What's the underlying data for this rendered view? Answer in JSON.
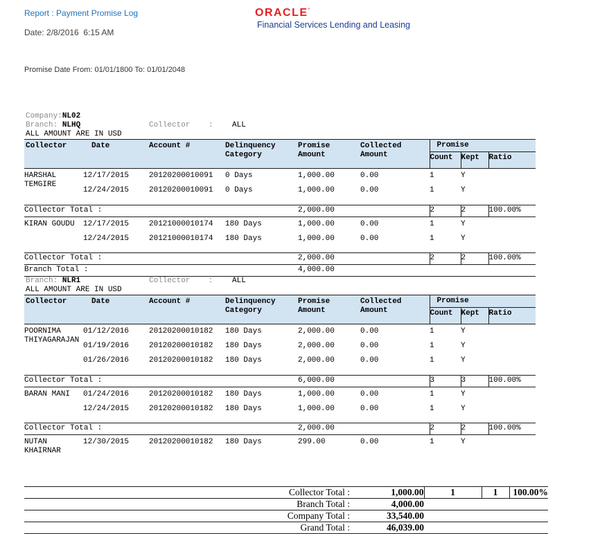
{
  "page": {
    "report_label": "Report : Payment Promise Log",
    "oracle_wordmark": "ORACLE",
    "oracle_mark": "’",
    "tagline": "Financial Services Lending and Leasing",
    "date_line": "Date: 2/8/2016  6:15 AM",
    "promise_range": "Promise Date From: 01/01/1800 To: 01/01/2048"
  },
  "labels": {
    "company": "Company:",
    "branch": "Branch: ",
    "collector": "Collector    :",
    "amount_note": "ALL AMOUNT ARE IN USD",
    "collector_total": "Collector Total :",
    "branch_total": "Branch Total :",
    "company_total": "Company Total :",
    "grand_total": "Grand Total :"
  },
  "company_value": "NL02",
  "columns": {
    "collector": "Collector",
    "date": "Date",
    "account": "Account #",
    "delinquency": [
      "Delinquency",
      "Category"
    ],
    "promise_amount": [
      "Promise",
      "Amount"
    ],
    "collected_amount": [
      "Collected",
      "Amount"
    ],
    "promise_group": "Promise",
    "count": "Count",
    "kept": "Kept",
    "ratio": "Ratio"
  },
  "colors": {
    "header_bg": "#d2e3f2",
    "title_blue": "#1e73bb",
    "tagline_navy": "#1c3c8f",
    "oracle_red": "#e31f21",
    "label_gray": "#8a8a8a"
  },
  "sections": [
    {
      "branch": "NLHQ",
      "collector_filter": "ALL",
      "groups": [
        {
          "collector": "HARSHAL TEMGIRE",
          "rows": [
            {
              "date": "12/17/2015",
              "account": "20120200010091",
              "delinquency": "0 Days",
              "promise": "1,000.00",
              "collected": "0.00",
              "count": "1",
              "kept": "Y"
            },
            {
              "date": "12/24/2015",
              "account": "20120200010091",
              "delinquency": "0 Days",
              "promise": "1,000.00",
              "collected": "0.00",
              "count": "1",
              "kept": "Y"
            }
          ],
          "total": {
            "promise": "2,000.00",
            "count": "2",
            "kept": "2",
            "ratio": "100.00%"
          }
        },
        {
          "collector": "KIRAN GOUDU",
          "rows": [
            {
              "date": "12/17/2015",
              "account": "20121000010174",
              "delinquency": "180 Days",
              "promise": "1,000.00",
              "collected": "0.00",
              "count": "1",
              "kept": "Y"
            },
            {
              "date": "12/24/2015",
              "account": "20121000010174",
              "delinquency": "180 Days",
              "promise": "1,000.00",
              "collected": "0.00",
              "count": "1",
              "kept": "Y"
            }
          ],
          "total": {
            "promise": "2,000.00",
            "count": "2",
            "kept": "2",
            "ratio": "100.00%"
          }
        }
      ],
      "branch_total": "4,000.00"
    },
    {
      "branch": "NLR1",
      "collector_filter": "ALL",
      "groups": [
        {
          "collector": "POORNIMA THIYAGARAJAN",
          "rows": [
            {
              "date": "01/12/2016",
              "account": "20120200010182",
              "delinquency": "180 Days",
              "promise": "2,000.00",
              "collected": "0.00",
              "count": "1",
              "kept": "Y"
            },
            {
              "date": "01/19/2016",
              "account": "20120200010182",
              "delinquency": "180 Days",
              "promise": "2,000.00",
              "collected": "0.00",
              "count": "1",
              "kept": "Y"
            },
            {
              "date": "01/26/2016",
              "account": "20120200010182",
              "delinquency": "180 Days",
              "promise": "2,000.00",
              "collected": "0.00",
              "count": "1",
              "kept": "Y"
            }
          ],
          "total": {
            "promise": "6,000.00",
            "count": "3",
            "kept": "3",
            "ratio": "100.00%"
          }
        },
        {
          "collector": "BARAN MANI",
          "rows": [
            {
              "date": "01/24/2016",
              "account": "20120200010182",
              "delinquency": "180 Days",
              "promise": "1,000.00",
              "collected": "0.00",
              "count": "1",
              "kept": "Y"
            },
            {
              "date": "12/24/2015",
              "account": "20120200010182",
              "delinquency": "180 Days",
              "promise": "1,000.00",
              "collected": "0.00",
              "count": "1",
              "kept": "Y"
            }
          ],
          "total": {
            "promise": "2,000.00",
            "count": "2",
            "kept": "2",
            "ratio": "100.00%"
          }
        },
        {
          "collector": "NUTAN KHAIRNAR",
          "rows": [
            {
              "date": "12/30/2015",
              "account": "20120200010182",
              "delinquency": "180 Days",
              "promise": "299.00",
              "collected": "0.00",
              "count": "1",
              "kept": "Y"
            }
          ],
          "total": null
        }
      ],
      "branch_total": null
    }
  ],
  "grand_totals": {
    "collector": {
      "amount": "1,000.00",
      "count": "1",
      "kept": "1",
      "ratio": "100.00%"
    },
    "branch": "4,000.00",
    "company": "33,540.00",
    "grand": "46,039.00"
  }
}
